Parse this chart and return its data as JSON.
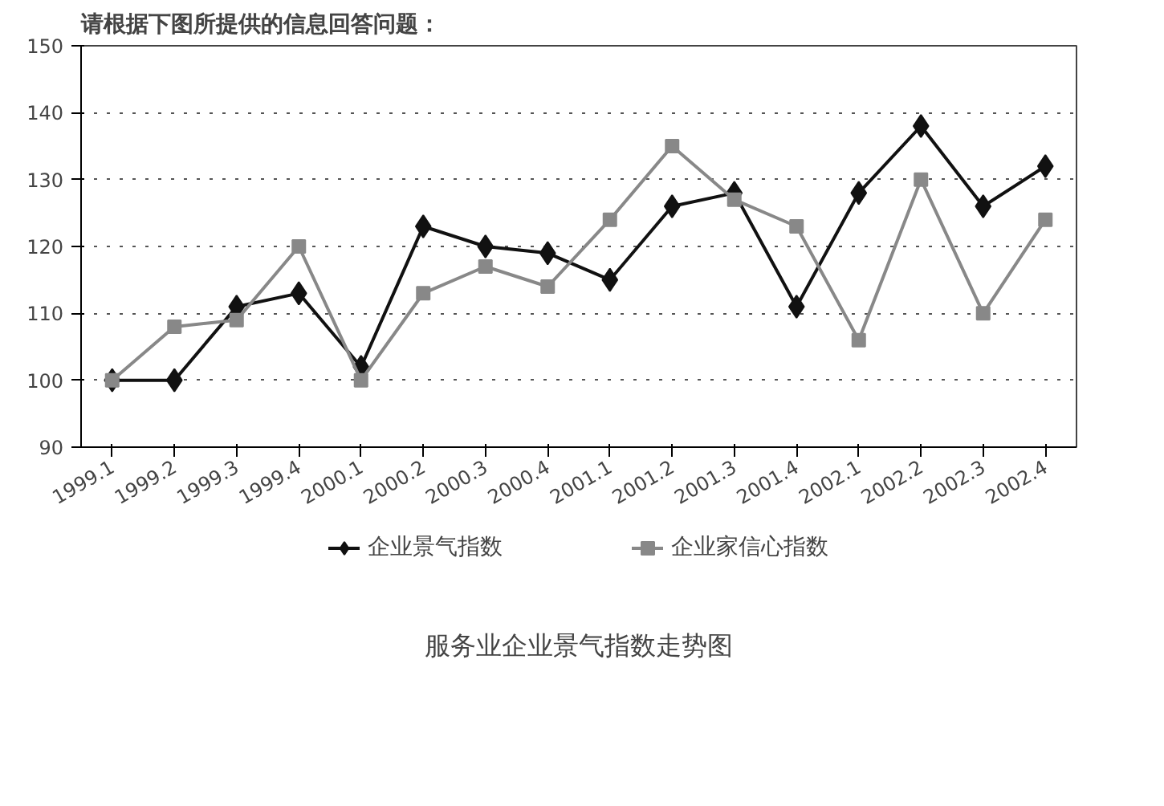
{
  "chart_data": {
    "type": "line",
    "title": "服务业企业景气指数走势图",
    "annotations": [
      "请根据下图所提供的信息回答问题："
    ],
    "categories": [
      "1999.1",
      "1999.2",
      "1999.3",
      "1999.4",
      "2000.1",
      "2000.2",
      "2000.3",
      "2000.4",
      "2001.1",
      "2001.2",
      "2001.3",
      "2001.4",
      "2002.1",
      "2002.2",
      "2002.3",
      "2002.4"
    ],
    "series": [
      {
        "name": "企业景气指数",
        "color": "#111111",
        "marker": "diamond",
        "values": [
          100,
          100,
          111,
          113,
          102,
          123,
          120,
          119,
          115,
          126,
          128,
          111,
          128,
          138,
          126,
          132
        ]
      },
      {
        "name": "企业家信心指数",
        "color": "#888888",
        "marker": "square",
        "values": [
          100,
          108,
          109,
          120,
          100,
          113,
          117,
          114,
          124,
          135,
          127,
          123,
          106,
          130,
          110,
          124
        ]
      }
    ],
    "ylim": [
      90,
      150
    ],
    "yticks": [
      90,
      100,
      110,
      120,
      130,
      140,
      150
    ],
    "grid": "y",
    "legend": "bottom"
  }
}
